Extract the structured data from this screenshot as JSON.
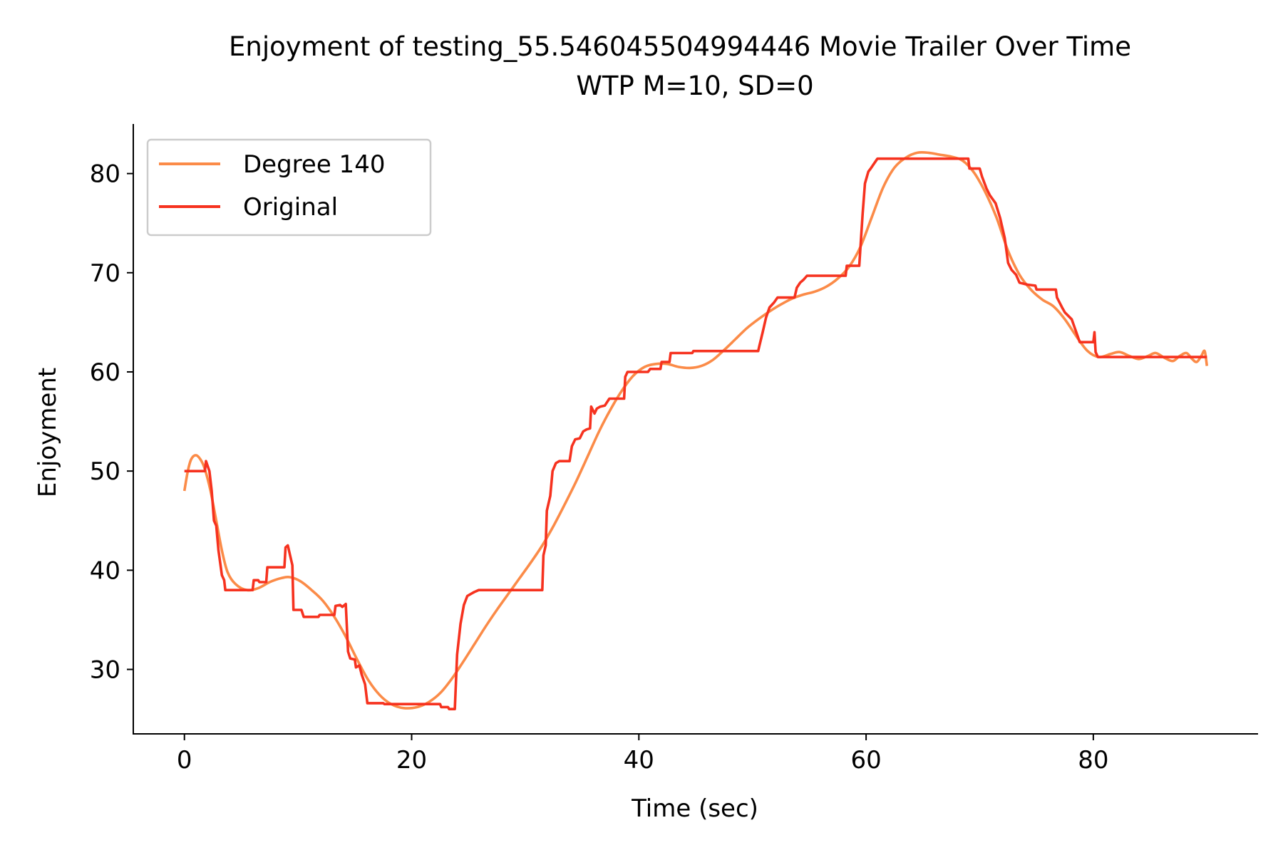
{
  "chart_data": {
    "type": "line",
    "title": "Enjoyment of testing_55.546045504994446 Movie Trailer Over Time",
    "subtitle": "WTP M=10, SD=0",
    "xlabel": "Time (sec)",
    "ylabel": "Enjoyment",
    "xlim": [
      -4.5,
      94.5
    ],
    "ylim": [
      23.5,
      85
    ],
    "x_ticks": [
      0,
      20,
      40,
      60,
      80
    ],
    "y_ticks": [
      30,
      40,
      50,
      60,
      70,
      80
    ],
    "grid": false,
    "legend_position": "top-left",
    "series": [
      {
        "name": "Degree 140",
        "color": "#fb8b48",
        "style": "smooth",
        "points": [
          [
            0,
            48
          ],
          [
            0.3,
            50
          ],
          [
            0.6,
            51.2
          ],
          [
            1.0,
            51.6
          ],
          [
            1.4,
            51.2
          ],
          [
            1.8,
            50.2
          ],
          [
            2.3,
            48
          ],
          [
            2.8,
            45
          ],
          [
            3.3,
            42
          ],
          [
            3.8,
            39.8
          ],
          [
            4.5,
            38.6
          ],
          [
            5.5,
            38.0
          ],
          [
            6.5,
            38.2
          ],
          [
            7.5,
            38.8
          ],
          [
            8.5,
            39.2
          ],
          [
            9.3,
            39.3
          ],
          [
            10.2,
            38.9
          ],
          [
            11.2,
            38.0
          ],
          [
            12.2,
            36.9
          ],
          [
            13.2,
            35.3
          ],
          [
            14.2,
            33.3
          ],
          [
            15.2,
            31.0
          ],
          [
            16.2,
            28.9
          ],
          [
            17.2,
            27.4
          ],
          [
            18.2,
            26.5
          ],
          [
            19.3,
            26.1
          ],
          [
            20.5,
            26.2
          ],
          [
            21.5,
            26.7
          ],
          [
            22.5,
            27.6
          ],
          [
            23.5,
            29.0
          ],
          [
            24.5,
            30.7
          ],
          [
            25.5,
            32.5
          ],
          [
            26.5,
            34.3
          ],
          [
            27.5,
            36.0
          ],
          [
            28.5,
            37.6
          ],
          [
            29.5,
            39.2
          ],
          [
            30.5,
            40.8
          ],
          [
            31.5,
            42.5
          ],
          [
            32.5,
            44.5
          ],
          [
            33.5,
            46.7
          ],
          [
            34.5,
            49.0
          ],
          [
            35.5,
            51.5
          ],
          [
            36.5,
            54.0
          ],
          [
            37.5,
            56.2
          ],
          [
            38.5,
            58.1
          ],
          [
            39.5,
            59.6
          ],
          [
            40.5,
            60.5
          ],
          [
            41.5,
            60.8
          ],
          [
            42.5,
            60.8
          ],
          [
            43.5,
            60.5
          ],
          [
            44.5,
            60.4
          ],
          [
            45.5,
            60.6
          ],
          [
            46.5,
            61.2
          ],
          [
            47.5,
            62.2
          ],
          [
            48.5,
            63.3
          ],
          [
            49.5,
            64.4
          ],
          [
            50.5,
            65.3
          ],
          [
            51.5,
            66.1
          ],
          [
            52.5,
            66.8
          ],
          [
            53.5,
            67.4
          ],
          [
            54.5,
            67.8
          ],
          [
            55.5,
            68.1
          ],
          [
            56.5,
            68.6
          ],
          [
            57.5,
            69.4
          ],
          [
            58.5,
            70.6
          ],
          [
            59.5,
            72.6
          ],
          [
            60.5,
            75.6
          ],
          [
            61.5,
            78.6
          ],
          [
            62.5,
            80.6
          ],
          [
            63.5,
            81.6
          ],
          [
            64.5,
            82.1
          ],
          [
            65.5,
            82.1
          ],
          [
            66.5,
            81.9
          ],
          [
            67.5,
            81.7
          ],
          [
            68.5,
            81.3
          ],
          [
            69.5,
            80.1
          ],
          [
            70.5,
            78.1
          ],
          [
            71.5,
            75.5
          ],
          [
            72.5,
            72.2
          ],
          [
            73.5,
            69.8
          ],
          [
            74.5,
            68.3
          ],
          [
            75.5,
            67.3
          ],
          [
            76.5,
            66.6
          ],
          [
            77.5,
            65.3
          ],
          [
            78.5,
            63.6
          ],
          [
            79.5,
            62.1
          ],
          [
            80.5,
            61.5
          ],
          [
            81.5,
            61.8
          ],
          [
            82.3,
            62.0
          ],
          [
            83.2,
            61.6
          ],
          [
            84.0,
            61.3
          ],
          [
            84.8,
            61.6
          ],
          [
            85.5,
            61.9
          ],
          [
            86.3,
            61.4
          ],
          [
            87.0,
            61.1
          ],
          [
            87.6,
            61.6
          ],
          [
            88.2,
            61.9
          ],
          [
            88.7,
            61.3
          ],
          [
            89.1,
            61.0
          ],
          [
            89.5,
            61.6
          ],
          [
            89.8,
            62.1
          ],
          [
            90.0,
            60.6
          ]
        ]
      },
      {
        "name": "Original",
        "color": "#f6321f",
        "style": "step",
        "points": [
          [
            0,
            50
          ],
          [
            1.8,
            50
          ],
          [
            1.9,
            51
          ],
          [
            2.2,
            50
          ],
          [
            2.4,
            48
          ],
          [
            2.6,
            45
          ],
          [
            2.8,
            44.5
          ],
          [
            3.0,
            42
          ],
          [
            3.3,
            39.5
          ],
          [
            3.5,
            39
          ],
          [
            3.6,
            38
          ],
          [
            6,
            38
          ],
          [
            6.1,
            39
          ],
          [
            6.5,
            39
          ],
          [
            6.6,
            38.8
          ],
          [
            7.2,
            38.8
          ],
          [
            7.3,
            40.3
          ],
          [
            8.8,
            40.3
          ],
          [
            8.9,
            42.3
          ],
          [
            9.1,
            42.5
          ],
          [
            9.3,
            41.5
          ],
          [
            9.5,
            40.5
          ],
          [
            9.6,
            36
          ],
          [
            10.3,
            36
          ],
          [
            10.5,
            35.3
          ],
          [
            11.8,
            35.3
          ],
          [
            11.9,
            35.5
          ],
          [
            13.2,
            35.5
          ],
          [
            13.3,
            36.4
          ],
          [
            13.7,
            36.5
          ],
          [
            13.9,
            36.3
          ],
          [
            14.2,
            36.6
          ],
          [
            14.4,
            31.8
          ],
          [
            14.6,
            31.1
          ],
          [
            15.0,
            31.0
          ],
          [
            15.1,
            30.2
          ],
          [
            15.4,
            30.4
          ],
          [
            15.6,
            29.5
          ],
          [
            15.9,
            28.5
          ],
          [
            16.1,
            26.6
          ],
          [
            17.5,
            26.6
          ],
          [
            17.6,
            26.5
          ],
          [
            22.5,
            26.5
          ],
          [
            22.6,
            26.2
          ],
          [
            23.2,
            26.2
          ],
          [
            23.3,
            26.0
          ],
          [
            23.8,
            26.0
          ],
          [
            24.0,
            31.5
          ],
          [
            24.3,
            34.6
          ],
          [
            24.6,
            36.5
          ],
          [
            24.9,
            37.4
          ],
          [
            25.2,
            37.6
          ],
          [
            25.5,
            37.8
          ],
          [
            25.9,
            38
          ],
          [
            31.5,
            38
          ],
          [
            31.6,
            41.5
          ],
          [
            31.8,
            42.5
          ],
          [
            31.9,
            46
          ],
          [
            32.2,
            47.5
          ],
          [
            32.4,
            50
          ],
          [
            32.7,
            50.8
          ],
          [
            33.0,
            51
          ],
          [
            33.9,
            51
          ],
          [
            34.1,
            52.5
          ],
          [
            34.4,
            53.2
          ],
          [
            34.8,
            53.3
          ],
          [
            35.1,
            54
          ],
          [
            35.4,
            54.2
          ],
          [
            35.7,
            54.3
          ],
          [
            35.8,
            56.5
          ],
          [
            36.1,
            55.8
          ],
          [
            36.3,
            56.3
          ],
          [
            36.6,
            56.5
          ],
          [
            37.0,
            56.6
          ],
          [
            37.4,
            57.3
          ],
          [
            38.7,
            57.3
          ],
          [
            38.8,
            59.5
          ],
          [
            39.0,
            60
          ],
          [
            40.8,
            60
          ],
          [
            41.0,
            60.3
          ],
          [
            41.9,
            60.3
          ],
          [
            42.0,
            61
          ],
          [
            42.7,
            61
          ],
          [
            42.8,
            61.9
          ],
          [
            44.7,
            61.9
          ],
          [
            44.8,
            62.1
          ],
          [
            50.5,
            62.1
          ],
          [
            50.6,
            62.6
          ],
          [
            50.9,
            64
          ],
          [
            51.2,
            65.5
          ],
          [
            51.5,
            66.5
          ],
          [
            51.9,
            67
          ],
          [
            52.2,
            67.5
          ],
          [
            53.7,
            67.5
          ],
          [
            53.9,
            68.5
          ],
          [
            54.2,
            69
          ],
          [
            54.5,
            69.3
          ],
          [
            54.8,
            69.7
          ],
          [
            58.2,
            69.7
          ],
          [
            58.3,
            70.7
          ],
          [
            59.4,
            70.7
          ],
          [
            59.7,
            76
          ],
          [
            59.9,
            79
          ],
          [
            60.2,
            80.2
          ],
          [
            60.4,
            80.5
          ],
          [
            60.7,
            81
          ],
          [
            61.0,
            81.5
          ],
          [
            69.0,
            81.5
          ],
          [
            69.1,
            80.5
          ],
          [
            70.0,
            80.5
          ],
          [
            70.2,
            79.7
          ],
          [
            70.6,
            78.5
          ],
          [
            70.9,
            77.8
          ],
          [
            71.4,
            77
          ],
          [
            71.8,
            75.5
          ],
          [
            72.2,
            73.5
          ],
          [
            72.5,
            71
          ],
          [
            72.8,
            70.3
          ],
          [
            73.2,
            69.8
          ],
          [
            73.5,
            69
          ],
          [
            74.2,
            68.8
          ],
          [
            74.9,
            68.7
          ],
          [
            75.0,
            68.3
          ],
          [
            76.7,
            68.3
          ],
          [
            76.8,
            67.5
          ],
          [
            77.3,
            66.4
          ],
          [
            77.5,
            66
          ],
          [
            78.1,
            65.3
          ],
          [
            78.5,
            64
          ],
          [
            78.8,
            63
          ],
          [
            80.0,
            63
          ],
          [
            80.1,
            64
          ],
          [
            80.2,
            62
          ],
          [
            80.4,
            61.5
          ],
          [
            90.0,
            61.5
          ]
        ]
      }
    ]
  }
}
